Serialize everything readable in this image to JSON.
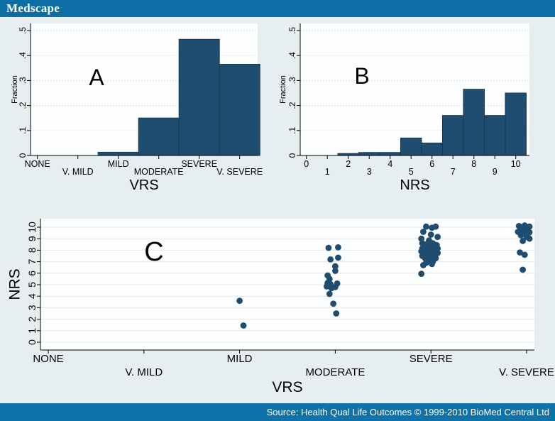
{
  "header": {
    "brand": "Medscape"
  },
  "footer": {
    "source_text": "Source: Health Qual Life Outcomes © 1999-2010 BioMed Central Ltd"
  },
  "colors": {
    "header_bg": "#0d6da5",
    "footer_bg": "#0f72a8",
    "canvas_bg": "#e7eef0",
    "plot_bg": "#fdfefe",
    "bar_fill": "#1f4d70",
    "bar_stroke": "#16384f",
    "dot_fill": "#1f4d70",
    "grid": "#dbe3e7",
    "grid_c": "#e4e9eb",
    "axis": "#000000"
  },
  "chart_data": [
    {
      "id": "A",
      "type": "bar",
      "panel_label": "A",
      "xlabel": "VRS",
      "ylabel": "Fraction",
      "categories": [
        "NONE",
        "V. MILD",
        "MILD",
        "MODERATE",
        "SEVERE",
        "V. SEVERE"
      ],
      "values": [
        0,
        0,
        0.013,
        0.15,
        0.465,
        0.365
      ],
      "ylim": [
        0,
        0.5
      ],
      "yticks": [
        0,
        0.1,
        0.2,
        0.3,
        0.4,
        0.5
      ],
      "ytick_labels": [
        "0",
        ".1",
        ".2",
        ".3",
        ".4",
        ".5"
      ],
      "grid": "dashed",
      "legend": "none"
    },
    {
      "id": "B",
      "type": "bar",
      "panel_label": "B",
      "xlabel": "NRS",
      "ylabel": "Fraction",
      "x": [
        2,
        3,
        4,
        5,
        6,
        7,
        8,
        9,
        10
      ],
      "values": [
        0.008,
        0.012,
        0.012,
        0.07,
        0.05,
        0.16,
        0.265,
        0.16,
        0.25
      ],
      "xticks": [
        0,
        1,
        2,
        3,
        4,
        5,
        6,
        7,
        8,
        9,
        10
      ],
      "xlim": [
        -0.65,
        10.65
      ],
      "ylim": [
        0,
        0.5
      ],
      "yticks": [
        0,
        0.1,
        0.2,
        0.3,
        0.4,
        0.5
      ],
      "ytick_labels": [
        "0",
        ".1",
        ".2",
        ".3",
        ".4",
        ".5"
      ],
      "grid": "dashed",
      "legend": "none"
    },
    {
      "id": "C",
      "type": "scatter",
      "panel_label": "C",
      "xlabel": "VRS",
      "ylabel": "NRS",
      "x_categories": [
        "NONE",
        "V. MILD",
        "MILD",
        "MODERATE",
        "SEVERE",
        "V. SEVERE"
      ],
      "ylim": [
        0,
        10
      ],
      "yticks": [
        0,
        1,
        2,
        3,
        4,
        5,
        6,
        7,
        8,
        9,
        10
      ],
      "grid": "solid",
      "points": [
        [
          2.0,
          3.6
        ],
        [
          2.04,
          1.45
        ],
        [
          2.93,
          8.2
        ],
        [
          3.03,
          8.25
        ],
        [
          2.95,
          7.2
        ],
        [
          3.03,
          7.35
        ],
        [
          3.0,
          6.6
        ],
        [
          3.0,
          6.2
        ],
        [
          2.92,
          5.8
        ],
        [
          2.94,
          5.5
        ],
        [
          2.92,
          5.15
        ],
        [
          2.95,
          5.05
        ],
        [
          2.91,
          4.85
        ],
        [
          2.96,
          4.7
        ],
        [
          3.0,
          4.8
        ],
        [
          3.02,
          5.1
        ],
        [
          2.94,
          4.2
        ],
        [
          2.98,
          3.35
        ],
        [
          3.01,
          2.5
        ],
        [
          3.95,
          10.05
        ],
        [
          4.01,
          9.95
        ],
        [
          4.05,
          10.05
        ],
        [
          3.92,
          9.6
        ],
        [
          4.0,
          9.35
        ],
        [
          4.07,
          9.15
        ],
        [
          3.9,
          9.0
        ],
        [
          3.98,
          8.85
        ],
        [
          3.91,
          8.6
        ],
        [
          3.96,
          8.55
        ],
        [
          4.02,
          8.6
        ],
        [
          4.06,
          8.45
        ],
        [
          3.94,
          8.3
        ],
        [
          3.99,
          8.35
        ],
        [
          4.04,
          8.25
        ],
        [
          3.91,
          8.15
        ],
        [
          3.97,
          8.1
        ],
        [
          4.03,
          8.1
        ],
        [
          4.07,
          8.15
        ],
        [
          3.94,
          8.0
        ],
        [
          4.0,
          8.0
        ],
        [
          4.05,
          7.95
        ],
        [
          3.9,
          7.9
        ],
        [
          3.96,
          7.85
        ],
        [
          4.02,
          7.8
        ],
        [
          4.07,
          7.75
        ],
        [
          3.93,
          7.65
        ],
        [
          3.99,
          7.6
        ],
        [
          4.04,
          7.6
        ],
        [
          3.91,
          7.5
        ],
        [
          3.97,
          7.45
        ],
        [
          4.03,
          7.4
        ],
        [
          3.94,
          7.3
        ],
        [
          4.0,
          7.25
        ],
        [
          4.05,
          7.3
        ],
        [
          3.98,
          7.1
        ],
        [
          4.02,
          7.0
        ],
        [
          3.95,
          6.9
        ],
        [
          4.01,
          6.8
        ],
        [
          3.92,
          6.7
        ],
        [
          3.9,
          5.95
        ],
        [
          4.92,
          10.1
        ],
        [
          4.98,
          10.15
        ],
        [
          5.03,
          10.05
        ],
        [
          4.95,
          9.9
        ],
        [
          5.01,
          9.8
        ],
        [
          4.91,
          9.6
        ],
        [
          4.97,
          9.5
        ],
        [
          5.03,
          9.55
        ],
        [
          4.94,
          9.3
        ],
        [
          5.0,
          9.15
        ],
        [
          5.03,
          9.0
        ],
        [
          4.96,
          8.8
        ],
        [
          4.93,
          7.8
        ],
        [
          4.98,
          7.6
        ],
        [
          4.96,
          6.3
        ]
      ]
    }
  ]
}
